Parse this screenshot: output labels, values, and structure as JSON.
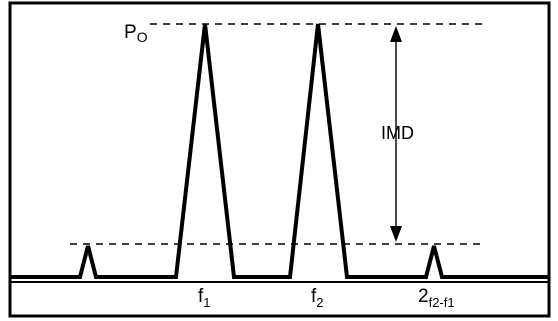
{
  "diagram": {
    "labels": {
      "p0": "P",
      "p0_sub": "O",
      "imd": "IMD",
      "f1": "f",
      "f1_sub": "1",
      "f2": "f",
      "f2_sub": "2",
      "product": "2",
      "product_sub": "f2-f1"
    },
    "colors": {
      "line": "#000000",
      "background": "#ffffff"
    }
  }
}
